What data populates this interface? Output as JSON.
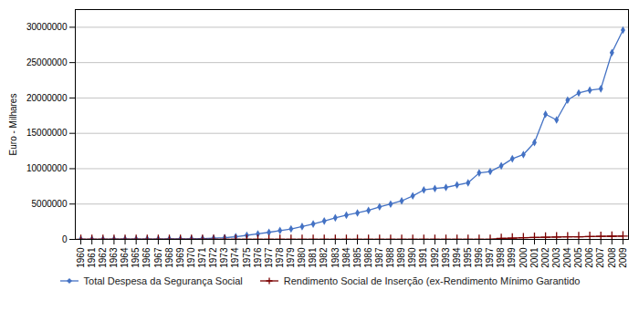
{
  "chart_data": {
    "type": "line",
    "ylabel": "Euro - Milhares",
    "x": [
      1960,
      1961,
      1962,
      1963,
      1964,
      1965,
      1966,
      1967,
      1968,
      1969,
      1970,
      1971,
      1972,
      1973,
      1974,
      1975,
      1976,
      1977,
      1978,
      1979,
      1980,
      1981,
      1982,
      1983,
      1984,
      1985,
      1986,
      1987,
      1988,
      1989,
      1990,
      1991,
      1992,
      1993,
      1994,
      1995,
      1996,
      1997,
      1998,
      1999,
      2000,
      2001,
      2002,
      2003,
      2004,
      2005,
      2006,
      2007,
      2008,
      2009
    ],
    "series": [
      {
        "name": "Total Despesa da Segurança Social",
        "color": "#4472C4",
        "marker": "diamond",
        "values": [
          22000,
          25000,
          28000,
          32000,
          36000,
          42000,
          48000,
          55000,
          63000,
          75000,
          92000,
          120000,
          165000,
          240000,
          380000,
          580000,
          780000,
          1000000,
          1250000,
          1480000,
          1820000,
          2180000,
          2600000,
          3050000,
          3430000,
          3750000,
          4100000,
          4600000,
          5000000,
          5450000,
          6150000,
          7000000,
          7200000,
          7350000,
          7700000,
          8000000,
          9400000,
          9600000,
          10400000,
          11400000,
          12000000,
          13700000,
          17700000,
          16900000,
          19700000,
          20700000,
          21100000,
          21300000,
          26400000,
          29600000
        ]
      },
      {
        "name": "Rendimento Social de Inserção (ex-Rendimento Mínimo Garantido",
        "color": "#7B0000",
        "marker": "plus",
        "values": [
          0,
          0,
          0,
          0,
          0,
          0,
          0,
          0,
          0,
          0,
          0,
          0,
          0,
          0,
          0,
          0,
          0,
          0,
          0,
          0,
          0,
          0,
          0,
          0,
          0,
          0,
          0,
          0,
          0,
          0,
          0,
          0,
          0,
          0,
          0,
          0,
          0,
          0,
          140000,
          180000,
          230000,
          270000,
          310000,
          340000,
          360000,
          380000,
          410000,
          430000,
          450000,
          470000
        ]
      }
    ],
    "xlim": [
      1959.5,
      2009.5
    ],
    "xticks": [
      1960,
      1961,
      1962,
      1963,
      1964,
      1965,
      1966,
      1967,
      1968,
      1969,
      1970,
      1971,
      1972,
      1973,
      1974,
      1975,
      1976,
      1977,
      1978,
      1979,
      1980,
      1981,
      1982,
      1983,
      1984,
      1985,
      1986,
      1987,
      1988,
      1989,
      1990,
      1991,
      1992,
      1993,
      1994,
      1995,
      1996,
      1997,
      1998,
      1999,
      2000,
      2001,
      2002,
      2003,
      2004,
      2005,
      2006,
      2007,
      2008,
      2009
    ],
    "ylim": [
      0,
      32500000
    ],
    "yticks": [
      0,
      5000000,
      10000000,
      15000000,
      20000000,
      25000000,
      30000000
    ],
    "grid": true,
    "legend": "bottom"
  }
}
